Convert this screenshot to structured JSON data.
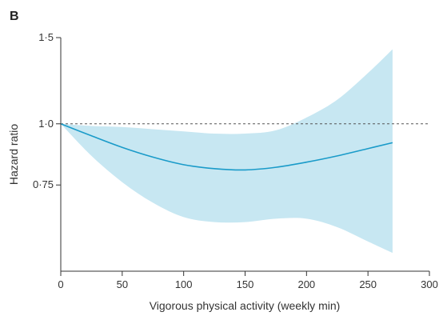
{
  "chart_data": {
    "type": "line",
    "panel_label": "B",
    "title": "",
    "xlabel": "Vigorous physical activity (weekly min)",
    "ylabel": "Hazard ratio",
    "xlim": [
      0,
      300
    ],
    "ylim": [
      0.5,
      1.5
    ],
    "x_ticks": [
      0,
      50,
      100,
      150,
      200,
      250,
      300
    ],
    "x_tick_labels": [
      "0",
      "50",
      "100",
      "150",
      "200",
      "250",
      "300"
    ],
    "y_ticks": [
      0.75,
      1.0,
      1.5
    ],
    "y_tick_labels": [
      "0·75",
      "1·0",
      "1·5"
    ],
    "y_scale": "log",
    "reference_line": {
      "y": 1.0,
      "style": "dashed"
    },
    "grid": false,
    "series": [
      {
        "x": [
          0,
          25,
          50,
          75,
          100,
          125,
          150,
          175,
          200,
          225,
          250,
          270
        ],
        "values": [
          1.0,
          0.945,
          0.895,
          0.855,
          0.825,
          0.81,
          0.805,
          0.815,
          0.835,
          0.86,
          0.89,
          0.915
        ],
        "lower": [
          1.0,
          0.86,
          0.76,
          0.69,
          0.645,
          0.63,
          0.63,
          0.64,
          0.64,
          0.615,
          0.575,
          0.545
        ],
        "upper": [
          1.0,
          0.99,
          0.985,
          0.975,
          0.965,
          0.955,
          0.955,
          0.97,
          1.03,
          1.12,
          1.27,
          1.42
        ]
      }
    ],
    "colors": {
      "line": "#1a9bc9",
      "band": "#c7e7f2",
      "axis": "#333333",
      "reference": "#555555"
    }
  }
}
